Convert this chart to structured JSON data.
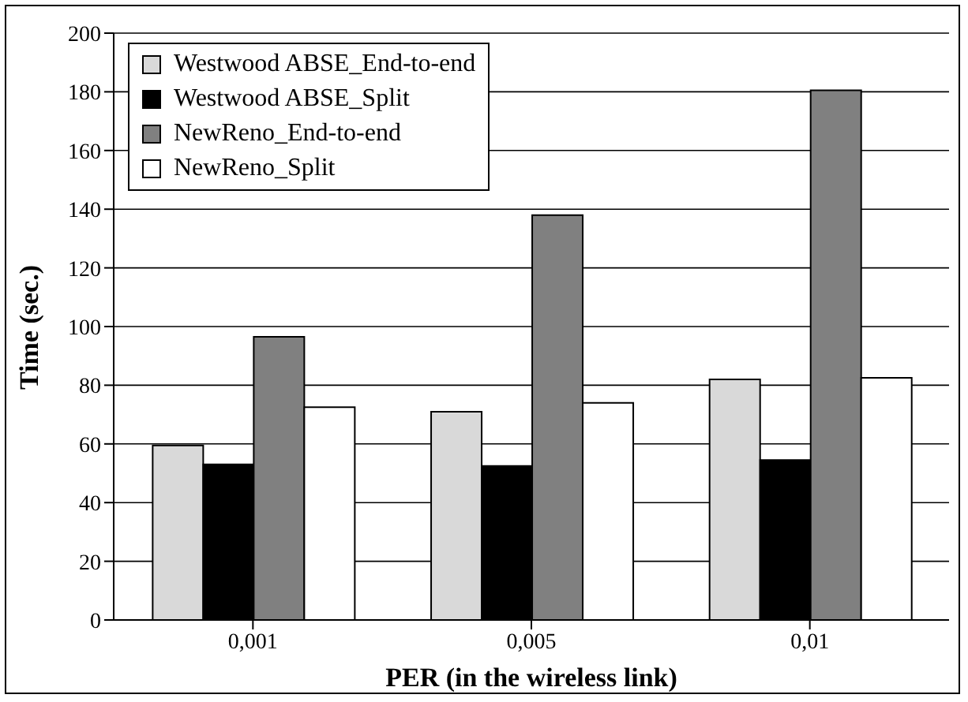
{
  "chart_data": {
    "type": "bar",
    "xlabel": "PER (in the wireless link)",
    "ylabel": "Time (sec.)",
    "categories": [
      "0,001",
      "0,005",
      "0,01"
    ],
    "series": [
      {
        "name": "Westwood ABSE_End-to-end",
        "color": "#d9d9d9",
        "values": [
          59.5,
          71,
          82
        ]
      },
      {
        "name": "Westwood ABSE_Split",
        "color": "#000000",
        "values": [
          53,
          52.5,
          54.5
        ]
      },
      {
        "name": "NewReno_End-to-end",
        "color": "#808080",
        "values": [
          96.5,
          138,
          180.5
        ]
      },
      {
        "name": "NewReno_Split",
        "color": "#ffffff",
        "values": [
          72.5,
          74,
          82.5
        ]
      }
    ],
    "ylim": [
      0,
      200
    ],
    "yticks": [
      0,
      20,
      40,
      60,
      80,
      100,
      120,
      140,
      160,
      180,
      200
    ],
    "grid": "y",
    "legend": "top left"
  }
}
